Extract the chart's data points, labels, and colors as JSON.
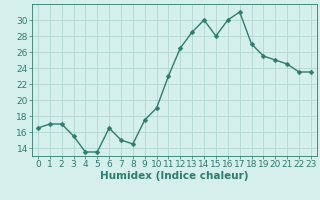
{
  "x": [
    0,
    1,
    2,
    3,
    4,
    5,
    6,
    7,
    8,
    9,
    10,
    11,
    12,
    13,
    14,
    15,
    16,
    17,
    18,
    19,
    20,
    21,
    22,
    23
  ],
  "y": [
    16.5,
    17.0,
    17.0,
    15.5,
    13.5,
    13.5,
    16.5,
    15.0,
    14.5,
    17.5,
    19.0,
    23.0,
    26.5,
    28.5,
    30.0,
    28.0,
    30.0,
    31.0,
    27.0,
    25.5,
    25.0,
    24.5,
    23.5,
    23.5
  ],
  "line_color": "#2d7d6e",
  "marker": "D",
  "marker_size": 2.5,
  "bg_color": "#d5f0ec",
  "grid_color": "#b2d8d0",
  "axis_color": "#2d7d6e",
  "xlabel": "Humidex (Indice chaleur)",
  "xlim": [
    -0.5,
    23.5
  ],
  "ylim": [
    13,
    32
  ],
  "yticks": [
    14,
    16,
    18,
    20,
    22,
    24,
    26,
    28,
    30
  ],
  "xticks": [
    0,
    1,
    2,
    3,
    4,
    5,
    6,
    7,
    8,
    9,
    10,
    11,
    12,
    13,
    14,
    15,
    16,
    17,
    18,
    19,
    20,
    21,
    22,
    23
  ],
  "xlabel_fontsize": 7.5,
  "tick_fontsize": 6.5,
  "line_width": 1.0
}
